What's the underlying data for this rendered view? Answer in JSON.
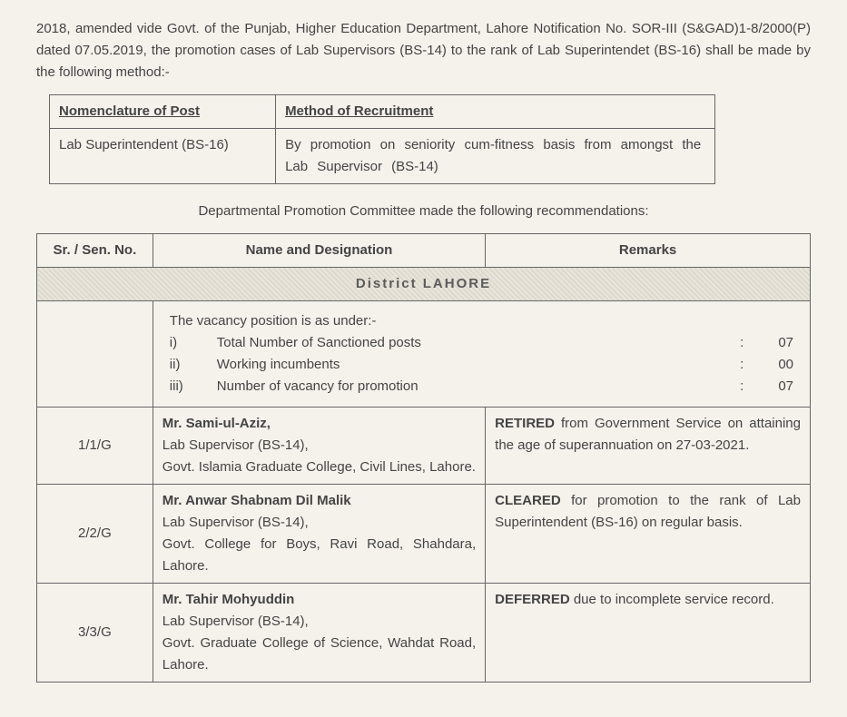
{
  "paragraph": "2018, amended vide Govt. of the Punjab, Higher Education Department, Lahore Notification No. SOR-III (S&GAD)1-8/2000(P) dated 07.05.2019, the promotion cases of Lab Supervisors (BS-14) to the rank of Lab Superintendet (BS-16) shall be made by the following method:-",
  "method_table": {
    "head1": "Nomenclature of Post",
    "head2": "Method of Recruitment",
    "cell1": "Lab Superintendent (BS-16)",
    "cell2": "By promotion on seniority cum-fitness basis from amongst the Lab Supervisor (BS-14)"
  },
  "intro_line": "Departmental Promotion Committee made the following recommendations:",
  "main_table": {
    "h1": "Sr. / Sen. No.",
    "h2": "Name and Designation",
    "h3": "Remarks",
    "district": "District LAHORE",
    "vacancy": {
      "title": "The vacancy position is as under:-",
      "rows": [
        {
          "n": "i)",
          "label": "Total Number of Sanctioned posts",
          "colon": ":",
          "val": "07"
        },
        {
          "n": "ii)",
          "label": "Working incumbents",
          "colon": ":",
          "val": "00"
        },
        {
          "n": "iii)",
          "label": "Number of vacancy for promotion",
          "colon": ":",
          "val": "07"
        }
      ]
    },
    "rows": [
      {
        "sr": "1/1/G",
        "name_bold": "Mr. Sami-ul-Aziz,",
        "name_rest": "Lab Supervisor (BS-14),\nGovt. Islamia Graduate College, Civil Lines, Lahore.",
        "remark_bold": "RETIRED",
        "remark_rest": " from Government Service on attaining the age of superannuation on 27-03-2021."
      },
      {
        "sr": "2/2/G",
        "name_bold": "Mr. Anwar Shabnam Dil Malik",
        "name_rest": "Lab Supervisor (BS-14),\nGovt. College for Boys, Ravi Road, Shahdara, Lahore.",
        "remark_bold": "CLEARED",
        "remark_rest": " for promotion to the rank of Lab Superintendent (BS-16) on regular basis."
      },
      {
        "sr": "3/3/G",
        "name_bold": "Mr. Tahir Mohyuddin",
        "name_rest": "Lab Supervisor (BS-14),\nGovt. Graduate College of Science, Wahdat Road, Lahore.",
        "remark_bold": "DEFERRED",
        "remark_rest": " due to incomplete service record."
      }
    ]
  }
}
